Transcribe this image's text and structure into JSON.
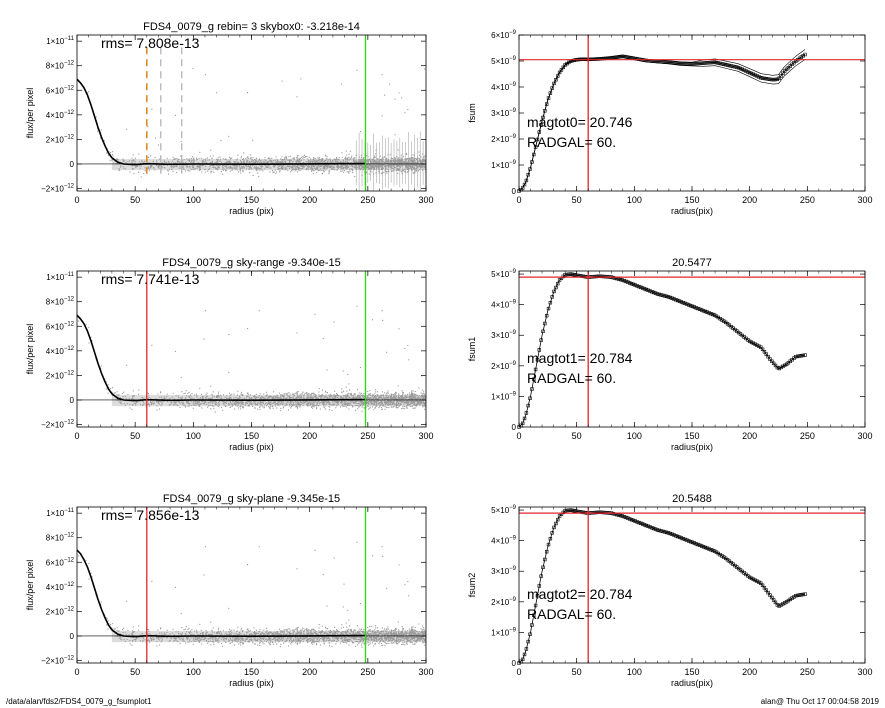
{
  "footer": {
    "path": "/data/alan/fds2/FDS4_0079_g_fsumplot1",
    "timestamp": "alan@  Thu Oct 17 00:04:58 2019"
  },
  "colors": {
    "data_points": "#9a9a9a",
    "profile": "#000000",
    "red": "#e0262b",
    "green": "#22e000",
    "orange": "#e08a2a",
    "gray_dash": "#b5b5b5"
  },
  "chart_data": [
    {
      "id": "flux-1",
      "type": "scatter",
      "title": "FDS4_0079_g rebin= 3    skybox0: -3.218e-14",
      "annotation": "rms= 7.808e-13",
      "xlabel": "radius (pix)",
      "ylabel": "flux/per pixel",
      "xlim": [
        0,
        300
      ],
      "ylim": [
        -2.2e-12,
        1.05e-11
      ],
      "xticks": [
        "0",
        "50",
        "100",
        "150",
        "200",
        "250",
        "300"
      ],
      "yticks": [
        {
          "v": -2e-12,
          "m": "−2×10",
          "e": "−12"
        },
        {
          "v": 0,
          "m": "0",
          "e": ""
        },
        {
          "v": 2e-12,
          "m": "2×10",
          "e": "−12"
        },
        {
          "v": 4e-12,
          "m": "4×10",
          "e": "−12"
        },
        {
          "v": 6e-12,
          "m": "6×10",
          "e": "−12"
        },
        {
          "v": 8e-12,
          "m": "8×10",
          "e": "−12"
        },
        {
          "v": 1e-11,
          "m": "1×10",
          "e": "−11"
        }
      ],
      "vlines": [
        {
          "x": 60,
          "color": "orange",
          "dash": true
        },
        {
          "x": 72,
          "color": "gray_dash",
          "dash": true
        },
        {
          "x": 90,
          "color": "gray_dash",
          "dash": true
        },
        {
          "x": 248,
          "color": "green",
          "dash": false
        }
      ],
      "sky_error_bars": true,
      "profile": [
        [
          0,
          6.9e-12
        ],
        [
          3,
          6.6e-12
        ],
        [
          6,
          6.2e-12
        ],
        [
          9,
          5.6e-12
        ],
        [
          12,
          4.8e-12
        ],
        [
          15,
          3.9e-12
        ],
        [
          18,
          3e-12
        ],
        [
          21,
          2.2e-12
        ],
        [
          24,
          1.5e-12
        ],
        [
          27,
          9e-13
        ],
        [
          30,
          5e-13
        ],
        [
          35,
          1.5e-13
        ],
        [
          40,
          0
        ],
        [
          50,
          -5e-14
        ],
        [
          60,
          2e-14
        ],
        [
          80,
          -3e-14
        ],
        [
          100,
          0
        ],
        [
          150,
          -2e-14
        ],
        [
          200,
          1e-14
        ],
        [
          248,
          3e-14
        ]
      ]
    },
    {
      "id": "fsum-0",
      "type": "line",
      "title": "",
      "annotation_lines": [
        "magtot0=  20.746",
        "RADGAL=     60."
      ],
      "xlabel": "radius(pix)",
      "ylabel": "fsum",
      "xlim": [
        0,
        300
      ],
      "ylim": [
        0,
        6e-09
      ],
      "xticks": [
        "0",
        "50",
        "100",
        "150",
        "200",
        "250",
        "300"
      ],
      "yticks": [
        {
          "v": 0,
          "m": "0",
          "e": ""
        },
        {
          "v": 1e-09,
          "m": "1×10",
          "e": "−9"
        },
        {
          "v": 2e-09,
          "m": "2×10",
          "e": "−9"
        },
        {
          "v": 3e-09,
          "m": "3×10",
          "e": "−9"
        },
        {
          "v": 4e-09,
          "m": "4×10",
          "e": "−9"
        },
        {
          "v": 5e-09,
          "m": "5×10",
          "e": "−9"
        },
        {
          "v": 6e-09,
          "m": "6×10",
          "e": "−9"
        }
      ],
      "hline": 5.05e-09,
      "vline": 60,
      "envelope": 1.2e-10,
      "curve": [
        [
          0,
          0
        ],
        [
          3,
          1e-10
        ],
        [
          6,
          3.5e-10
        ],
        [
          10,
          9e-10
        ],
        [
          15,
          1.8e-09
        ],
        [
          20,
          2.7e-09
        ],
        [
          25,
          3.5e-09
        ],
        [
          30,
          4.1e-09
        ],
        [
          35,
          4.55e-09
        ],
        [
          40,
          4.85e-09
        ],
        [
          45,
          5e-09
        ],
        [
          50,
          5.05e-09
        ],
        [
          55,
          5.07e-09
        ],
        [
          60,
          5.06e-09
        ],
        [
          70,
          5.08e-09
        ],
        [
          80,
          5.12e-09
        ],
        [
          90,
          5.18e-09
        ],
        [
          100,
          5.1e-09
        ],
        [
          110,
          5.02e-09
        ],
        [
          120,
          4.98e-09
        ],
        [
          130,
          4.95e-09
        ],
        [
          140,
          4.9e-09
        ],
        [
          150,
          4.88e-09
        ],
        [
          160,
          4.92e-09
        ],
        [
          170,
          4.95e-09
        ],
        [
          180,
          4.85e-09
        ],
        [
          190,
          4.75e-09
        ],
        [
          200,
          4.55e-09
        ],
        [
          210,
          4.35e-09
        ],
        [
          220,
          4.28e-09
        ],
        [
          225,
          4.3e-09
        ],
        [
          230,
          4.6e-09
        ],
        [
          240,
          5e-09
        ],
        [
          248,
          5.25e-09
        ]
      ]
    },
    {
      "id": "flux-2",
      "type": "scatter",
      "title": "FDS4_0079_g sky-range -9.340e-15",
      "annotation": "rms= 7.741e-13",
      "xlabel": "radius (pix)",
      "ylabel": "flux/per pixel",
      "xlim": [
        0,
        300
      ],
      "ylim": [
        -2.2e-12,
        1.05e-11
      ],
      "xticks": [
        "0",
        "50",
        "100",
        "150",
        "200",
        "250",
        "300"
      ],
      "yticks": [
        {
          "v": -2e-12,
          "m": "−2×10",
          "e": "−12"
        },
        {
          "v": 0,
          "m": "0",
          "e": ""
        },
        {
          "v": 2e-12,
          "m": "2×10",
          "e": "−12"
        },
        {
          "v": 4e-12,
          "m": "4×10",
          "e": "−12"
        },
        {
          "v": 6e-12,
          "m": "6×10",
          "e": "−12"
        },
        {
          "v": 8e-12,
          "m": "8×10",
          "e": "−12"
        },
        {
          "v": 1e-11,
          "m": "1×10",
          "e": "−11"
        }
      ],
      "vlines": [
        {
          "x": 60,
          "color": "red",
          "dash": false
        },
        {
          "x": 248,
          "color": "green",
          "dash": false
        }
      ],
      "sky_error_bars": false,
      "profile": [
        [
          0,
          6.9e-12
        ],
        [
          3,
          6.6e-12
        ],
        [
          6,
          6.2e-12
        ],
        [
          9,
          5.6e-12
        ],
        [
          12,
          4.8e-12
        ],
        [
          15,
          3.9e-12
        ],
        [
          18,
          3e-12
        ],
        [
          21,
          2.2e-12
        ],
        [
          24,
          1.5e-12
        ],
        [
          27,
          9e-13
        ],
        [
          30,
          5e-13
        ],
        [
          35,
          1.5e-13
        ],
        [
          40,
          0
        ],
        [
          50,
          -5e-14
        ],
        [
          60,
          2e-14
        ],
        [
          80,
          -3e-14
        ],
        [
          100,
          0
        ],
        [
          150,
          -2e-14
        ],
        [
          200,
          1e-14
        ],
        [
          248,
          3e-14
        ]
      ]
    },
    {
      "id": "fsum-1",
      "type": "line",
      "title": "20.5477",
      "annotation_lines": [
        "magtot1=  20.784",
        "RADGAL=     60."
      ],
      "xlabel": "radius(pix)",
      "ylabel": "fsum1",
      "xlim": [
        0,
        300
      ],
      "ylim": [
        0,
        5.1e-09
      ],
      "xticks": [
        "0",
        "50",
        "100",
        "150",
        "200",
        "250",
        "300"
      ],
      "yticks": [
        {
          "v": 0,
          "m": "0",
          "e": ""
        },
        {
          "v": 1e-09,
          "m": "1×10",
          "e": "−9"
        },
        {
          "v": 2e-09,
          "m": "2×10",
          "e": "−9"
        },
        {
          "v": 3e-09,
          "m": "3×10",
          "e": "−9"
        },
        {
          "v": 4e-09,
          "m": "4×10",
          "e": "−9"
        },
        {
          "v": 5e-09,
          "m": "5×10",
          "e": "−9"
        }
      ],
      "hline": 4.9e-09,
      "vline": 60,
      "envelope": 0,
      "curve": [
        [
          0,
          0
        ],
        [
          3,
          1e-10
        ],
        [
          6,
          4e-10
        ],
        [
          10,
          1e-09
        ],
        [
          15,
          2e-09
        ],
        [
          20,
          3e-09
        ],
        [
          25,
          3.8e-09
        ],
        [
          30,
          4.4e-09
        ],
        [
          35,
          4.8e-09
        ],
        [
          40,
          4.98e-09
        ],
        [
          45,
          5e-09
        ],
        [
          50,
          4.96e-09
        ],
        [
          60,
          4.9e-09
        ],
        [
          70,
          4.93e-09
        ],
        [
          80,
          4.9e-09
        ],
        [
          90,
          4.8e-09
        ],
        [
          100,
          4.65e-09
        ],
        [
          110,
          4.5e-09
        ],
        [
          120,
          4.35e-09
        ],
        [
          130,
          4.25e-09
        ],
        [
          140,
          4.1e-09
        ],
        [
          150,
          3.95e-09
        ],
        [
          160,
          3.8e-09
        ],
        [
          170,
          3.65e-09
        ],
        [
          180,
          3.4e-09
        ],
        [
          190,
          3.1e-09
        ],
        [
          200,
          2.8e-09
        ],
        [
          210,
          2.6e-09
        ],
        [
          218,
          2.2e-09
        ],
        [
          225,
          1.9e-09
        ],
        [
          232,
          2.05e-09
        ],
        [
          240,
          2.3e-09
        ],
        [
          248,
          2.35e-09
        ]
      ]
    },
    {
      "id": "flux-3",
      "type": "scatter",
      "title": "FDS4_0079_g sky-plane -9.345e-15",
      "annotation": "rms= 7.856e-13",
      "xlabel": "radius (pix)",
      "ylabel": "flux/per pixel",
      "xlim": [
        0,
        300
      ],
      "ylim": [
        -2.2e-12,
        1.05e-11
      ],
      "xticks": [
        "0",
        "50",
        "100",
        "150",
        "200",
        "250",
        "300"
      ],
      "yticks": [
        {
          "v": -2e-12,
          "m": "−2×10",
          "e": "−12"
        },
        {
          "v": 0,
          "m": "0",
          "e": ""
        },
        {
          "v": 2e-12,
          "m": "2×10",
          "e": "−12"
        },
        {
          "v": 4e-12,
          "m": "4×10",
          "e": "−12"
        },
        {
          "v": 6e-12,
          "m": "6×10",
          "e": "−12"
        },
        {
          "v": 8e-12,
          "m": "8×10",
          "e": "−12"
        },
        {
          "v": 1e-11,
          "m": "1×10",
          "e": "−11"
        }
      ],
      "vlines": [
        {
          "x": 60,
          "color": "red",
          "dash": false
        },
        {
          "x": 248,
          "color": "green",
          "dash": false
        }
      ],
      "sky_error_bars": false,
      "profile": [
        [
          0,
          7e-12
        ],
        [
          3,
          6.7e-12
        ],
        [
          6,
          6.2e-12
        ],
        [
          9,
          5.6e-12
        ],
        [
          12,
          4.8e-12
        ],
        [
          15,
          3.9e-12
        ],
        [
          18,
          3e-12
        ],
        [
          21,
          2.2e-12
        ],
        [
          24,
          1.5e-12
        ],
        [
          27,
          9e-13
        ],
        [
          30,
          5e-13
        ],
        [
          35,
          1.5e-13
        ],
        [
          40,
          0
        ],
        [
          50,
          -5e-14
        ],
        [
          60,
          2e-14
        ],
        [
          80,
          -3e-14
        ],
        [
          100,
          0
        ],
        [
          150,
          -2e-14
        ],
        [
          200,
          1e-14
        ],
        [
          248,
          3e-14
        ]
      ]
    },
    {
      "id": "fsum-2",
      "type": "line",
      "title": "20.5488",
      "annotation_lines": [
        "magtot2=  20.784",
        "RADGAL=     60."
      ],
      "xlabel": "radius(pix)",
      "ylabel": "fsum2",
      "xlim": [
        0,
        300
      ],
      "ylim": [
        0,
        5.1e-09
      ],
      "xticks": [
        "0",
        "50",
        "100",
        "150",
        "200",
        "250",
        "300"
      ],
      "yticks": [
        {
          "v": 0,
          "m": "0",
          "e": ""
        },
        {
          "v": 1e-09,
          "m": "1×10",
          "e": "−9"
        },
        {
          "v": 2e-09,
          "m": "2×10",
          "e": "−9"
        },
        {
          "v": 3e-09,
          "m": "3×10",
          "e": "−9"
        },
        {
          "v": 4e-09,
          "m": "4×10",
          "e": "−9"
        },
        {
          "v": 5e-09,
          "m": "5×10",
          "e": "−9"
        }
      ],
      "hline": 4.9e-09,
      "vline": 60,
      "envelope": 0,
      "curve": [
        [
          0,
          0
        ],
        [
          3,
          1e-10
        ],
        [
          6,
          4e-10
        ],
        [
          10,
          1e-09
        ],
        [
          15,
          2e-09
        ],
        [
          20,
          3e-09
        ],
        [
          25,
          3.8e-09
        ],
        [
          30,
          4.4e-09
        ],
        [
          35,
          4.8e-09
        ],
        [
          40,
          4.98e-09
        ],
        [
          45,
          5e-09
        ],
        [
          50,
          4.96e-09
        ],
        [
          60,
          4.9e-09
        ],
        [
          70,
          4.93e-09
        ],
        [
          80,
          4.9e-09
        ],
        [
          90,
          4.8e-09
        ],
        [
          100,
          4.65e-09
        ],
        [
          110,
          4.5e-09
        ],
        [
          120,
          4.35e-09
        ],
        [
          130,
          4.25e-09
        ],
        [
          140,
          4.1e-09
        ],
        [
          150,
          3.95e-09
        ],
        [
          160,
          3.8e-09
        ],
        [
          170,
          3.65e-09
        ],
        [
          180,
          3.4e-09
        ],
        [
          190,
          3.1e-09
        ],
        [
          200,
          2.8e-09
        ],
        [
          210,
          2.6e-09
        ],
        [
          218,
          2.2e-09
        ],
        [
          225,
          1.85e-09
        ],
        [
          232,
          2e-09
        ],
        [
          240,
          2.2e-09
        ],
        [
          248,
          2.25e-09
        ]
      ]
    }
  ]
}
